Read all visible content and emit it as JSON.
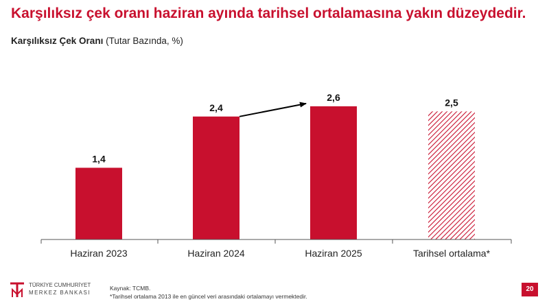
{
  "slide": {
    "title": "Karşılıksız çek oranı haziran ayında tarihsel ortalamasına yakın düzeydedir.",
    "subtitle_bold": "Karşılıksız Çek Oranı",
    "subtitle_rest": " (Tutar Bazında, %)"
  },
  "colors": {
    "accent": "#c8102e",
    "text": "#222222",
    "axis": "#555555"
  },
  "chart_data": {
    "type": "bar",
    "categories": [
      "Haziran 2023",
      "Haziran 2024",
      "Haziran 2025",
      "Tarihsel ortalama*"
    ],
    "values": [
      1.4,
      2.4,
      2.6,
      2.5
    ],
    "value_labels": [
      "1,4",
      "2,4",
      "2,6",
      "2,5"
    ],
    "bar_styles": [
      "solid",
      "solid",
      "solid",
      "hatched"
    ],
    "ylim": [
      0,
      3
    ],
    "grid": false,
    "annotations": [
      {
        "type": "arrow",
        "from_category": "Haziran 2024",
        "to_category": "Haziran 2025"
      }
    ]
  },
  "footer": {
    "source": "Kaynak: TCMB.",
    "note": "*Tarihsel ortalama 2013 ile en güncel veri arasındaki ortalamayı vermektedir.",
    "page_number": "20"
  },
  "logo": {
    "line1": "TÜRKİYE CUMHURİYET",
    "line2": "MERKEZ BANKASI",
    "mark": "TCMB"
  }
}
